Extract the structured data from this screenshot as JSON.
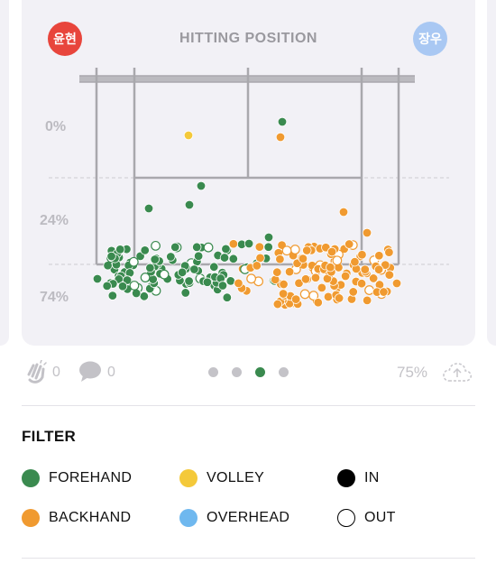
{
  "card": {
    "title": "HITTING POSITION",
    "player_left": {
      "name": "윤현",
      "color": "#e8453c"
    },
    "player_right": {
      "name": "장우",
      "color": "#a9c8f3"
    },
    "pct_labels": [
      "0%",
      "24%",
      "74%"
    ]
  },
  "footer": {
    "likes_count": "0",
    "comments_count": "0",
    "progress": "75%",
    "page_total": 4,
    "page_active": 3
  },
  "filter": {
    "title": "FILTER",
    "items": [
      {
        "label": "FOREHAND",
        "color": "#3a8a4f",
        "type": "fill"
      },
      {
        "label": "VOLLEY",
        "color": "#f4c93a",
        "type": "fill"
      },
      {
        "label": "IN",
        "color": "#000000",
        "type": "fill"
      },
      {
        "label": "BACKHAND",
        "color": "#f09a30",
        "type": "fill"
      },
      {
        "label": "OVERHEAD",
        "color": "#6fb8ef",
        "type": "fill"
      },
      {
        "label": "OUT",
        "color": "#000000",
        "type": "outline"
      }
    ]
  },
  "colors": {
    "forehand": "#3a8a4f",
    "backhand": "#f09a30",
    "volley": "#f4c93a",
    "card_bg": "#f2f1f6",
    "court_line": "#a9a8ad",
    "active_page_dot": "#3a8a4f",
    "inactive_page_dot": "#c4c3c8"
  },
  "icons": {
    "like": "clap-icon",
    "comment": "speech-bubble-icon",
    "share": "cloud-upload-icon"
  }
}
